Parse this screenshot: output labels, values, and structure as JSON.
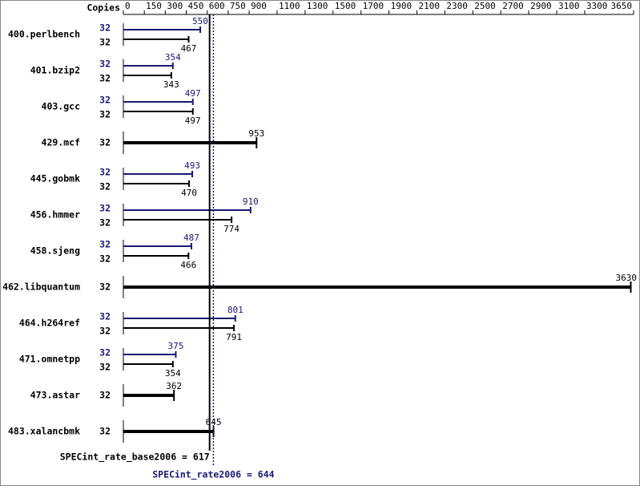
{
  "chart_data": {
    "type": "bar",
    "orientation": "horizontal",
    "xlabel": "Copies",
    "categories": [
      "400.perlbench",
      "401.bzip2",
      "403.gcc",
      "429.mcf",
      "445.gobmk",
      "456.hmmer",
      "458.sjeng",
      "462.libquantum",
      "464.h264ref",
      "471.omnetpp",
      "473.astar",
      "483.xalancbmk"
    ],
    "series": [
      {
        "color": "#191970",
        "copies": [
          32,
          32,
          32,
          null,
          32,
          32,
          32,
          null,
          32,
          32,
          null,
          null
        ],
        "values": [
          550,
          354,
          497,
          null,
          493,
          910,
          487,
          null,
          801,
          375,
          null,
          null
        ]
      },
      {
        "color": "#000000",
        "copies": [
          32,
          32,
          32,
          32,
          32,
          32,
          32,
          32,
          32,
          32,
          32,
          32
        ],
        "values": [
          467,
          343,
          497,
          953,
          470,
          774,
          466,
          3630,
          791,
          354,
          362,
          645
        ]
      }
    ],
    "xlim": [
      0,
      3650
    ],
    "xticks": [
      0,
      150,
      300,
      450,
      600,
      750,
      900,
      1100,
      1300,
      1500,
      1700,
      1900,
      2100,
      2300,
      2500,
      2700,
      2900,
      3100,
      3300,
      3650
    ],
    "reference_lines": [
      {
        "text": "SPECint_rate_base2006 = 617",
        "value": 617,
        "color": "#000000"
      },
      {
        "text": "SPECint_rate2006 = 644",
        "value": 644,
        "color": "#191970"
      }
    ]
  }
}
